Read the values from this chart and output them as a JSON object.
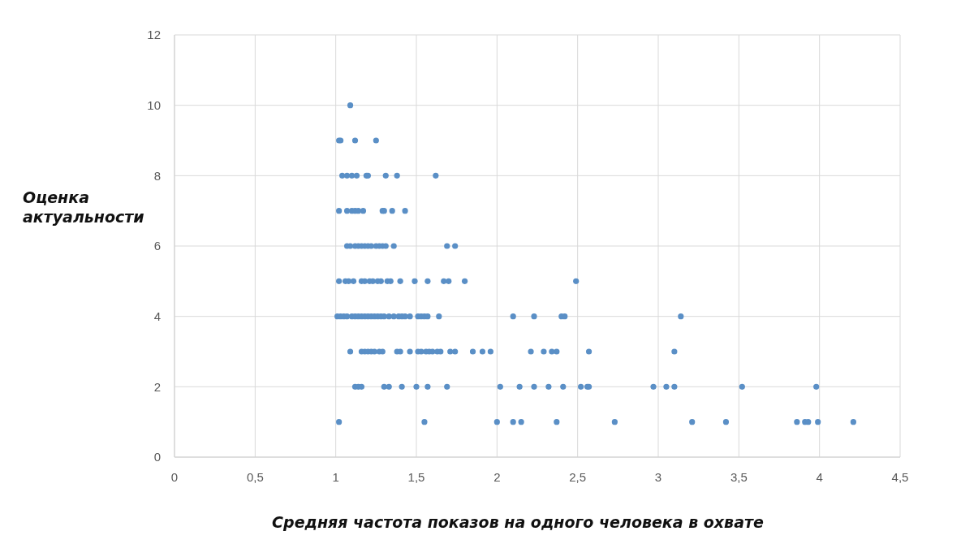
{
  "chart_data": {
    "type": "scatter",
    "xlabel": "Средняя частота показов на одного человека в охвате",
    "ylabel": "Оценка актуальности",
    "xlim": [
      0,
      4.5
    ],
    "ylim": [
      0,
      12
    ],
    "xticks": [
      0,
      {
        "value": 0.5,
        "label": "0,5"
      },
      1,
      {
        "value": 1.5,
        "label": "1,5"
      },
      2,
      {
        "value": 2.5,
        "label": "2,5"
      },
      3,
      {
        "value": 3.5,
        "label": "3,5"
      },
      4,
      {
        "value": 4.5,
        "label": "4,5"
      }
    ],
    "yticks": [
      0,
      2,
      4,
      6,
      8,
      10,
      12
    ],
    "grid": true,
    "marker": "circle",
    "color": "#5a8fc6",
    "x": [
      1.09,
      1.02,
      1.03,
      1.12,
      1.25,
      1.04,
      1.07,
      1.1,
      1.13,
      1.19,
      1.2,
      1.31,
      1.38,
      1.62,
      1.02,
      1.07,
      1.1,
      1.12,
      1.14,
      1.17,
      1.29,
      1.3,
      1.35,
      1.43,
      1.07,
      1.09,
      1.12,
      1.14,
      1.16,
      1.18,
      1.2,
      1.22,
      1.25,
      1.27,
      1.29,
      1.31,
      1.36,
      1.69,
      1.74,
      1.02,
      1.06,
      1.08,
      1.11,
      1.16,
      1.18,
      1.21,
      1.23,
      1.26,
      1.28,
      1.32,
      1.34,
      1.4,
      1.49,
      1.57,
      1.67,
      1.7,
      1.8,
      2.49,
      1.01,
      1.03,
      1.05,
      1.07,
      1.1,
      1.12,
      1.14,
      1.16,
      1.18,
      1.2,
      1.22,
      1.24,
      1.26,
      1.28,
      1.3,
      1.33,
      1.36,
      1.39,
      1.41,
      1.43,
      1.46,
      1.51,
      1.53,
      1.55,
      1.57,
      1.64,
      2.1,
      2.23,
      2.4,
      2.42,
      3.14,
      1.09,
      1.16,
      1.18,
      1.2,
      1.22,
      1.24,
      1.27,
      1.29,
      1.38,
      1.4,
      1.46,
      1.51,
      1.53,
      1.56,
      1.58,
      1.6,
      1.63,
      1.65,
      1.71,
      1.74,
      1.85,
      1.91,
      1.96,
      2.21,
      2.29,
      2.34,
      2.37,
      2.57,
      3.1,
      1.12,
      1.14,
      1.16,
      1.3,
      1.33,
      1.41,
      1.5,
      1.57,
      1.69,
      2.02,
      2.14,
      2.23,
      2.32,
      2.41,
      2.52,
      2.56,
      2.57,
      2.97,
      3.05,
      3.1,
      3.52,
      3.98,
      1.02,
      1.55,
      2.0,
      2.1,
      2.15,
      2.37,
      2.73,
      3.21,
      3.42,
      3.86,
      3.91,
      3.93,
      3.99,
      4.21
    ],
    "values": [
      10,
      9,
      9,
      9,
      9,
      8,
      8,
      8,
      8,
      8,
      8,
      8,
      8,
      8,
      7,
      7,
      7,
      7,
      7,
      7,
      7,
      7,
      7,
      7,
      6,
      6,
      6,
      6,
      6,
      6,
      6,
      6,
      6,
      6,
      6,
      6,
      6,
      6,
      6,
      5,
      5,
      5,
      5,
      5,
      5,
      5,
      5,
      5,
      5,
      5,
      5,
      5,
      5,
      5,
      5,
      5,
      5,
      5,
      4,
      4,
      4,
      4,
      4,
      4,
      4,
      4,
      4,
      4,
      4,
      4,
      4,
      4,
      4,
      4,
      4,
      4,
      4,
      4,
      4,
      4,
      4,
      4,
      4,
      4,
      4,
      4,
      4,
      4,
      4,
      3,
      3,
      3,
      3,
      3,
      3,
      3,
      3,
      3,
      3,
      3,
      3,
      3,
      3,
      3,
      3,
      3,
      3,
      3,
      3,
      3,
      3,
      3,
      3,
      3,
      3,
      3,
      3,
      3,
      2,
      2,
      2,
      2,
      2,
      2,
      2,
      2,
      2,
      2,
      2,
      2,
      2,
      2,
      2,
      2,
      2,
      2,
      2,
      2,
      2,
      2,
      1,
      1,
      1,
      1,
      1,
      1,
      1,
      1,
      1,
      1,
      1,
      1,
      1,
      1
    ]
  }
}
